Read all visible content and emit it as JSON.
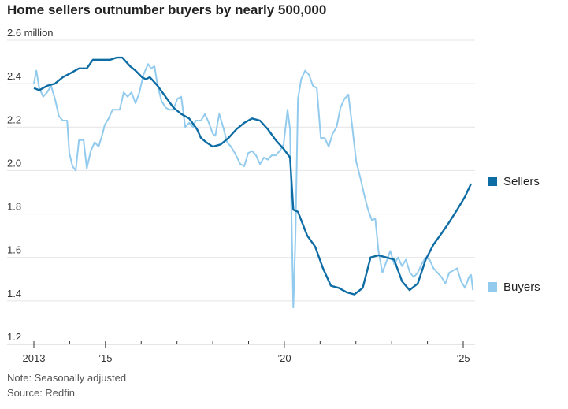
{
  "chart_data": {
    "type": "line",
    "title": "Home sellers outnumber buyers by nearly 500,000",
    "ylabel_unit": "million",
    "ylim": [
      1.2,
      2.6
    ],
    "yticks": [
      {
        "v": 2.6,
        "label": "2.6 million"
      },
      {
        "v": 2.4,
        "label": "2.4"
      },
      {
        "v": 2.2,
        "label": "2.2"
      },
      {
        "v": 2.0,
        "label": "2.0"
      },
      {
        "v": 1.8,
        "label": "1.8"
      },
      {
        "v": 1.6,
        "label": "1.6"
      },
      {
        "v": 1.4,
        "label": "1.4"
      },
      {
        "v": 1.2,
        "label": "1.2"
      }
    ],
    "xlim": [
      2013,
      2025.35
    ],
    "xticks": [
      {
        "v": 2013,
        "label": "2013"
      },
      {
        "v": 2014,
        "label": ""
      },
      {
        "v": 2015,
        "label": "’15"
      },
      {
        "v": 2016,
        "label": ""
      },
      {
        "v": 2017,
        "label": ""
      },
      {
        "v": 2018,
        "label": ""
      },
      {
        "v": 2019,
        "label": ""
      },
      {
        "v": 2020,
        "label": "’20"
      },
      {
        "v": 2021,
        "label": ""
      },
      {
        "v": 2022,
        "label": ""
      },
      {
        "v": 2023,
        "label": ""
      },
      {
        "v": 2024,
        "label": ""
      },
      {
        "v": 2025,
        "label": "’25"
      }
    ],
    "grid": true,
    "legend_placement": "right",
    "series": [
      {
        "name": "Sellers",
        "color": "#0e6ca4",
        "x": [
          2013.0,
          2013.15,
          2013.37,
          2013.59,
          2013.81,
          2014.04,
          2014.26,
          2014.48,
          2014.65,
          2014.81,
          2015.0,
          2015.14,
          2015.31,
          2015.47,
          2015.69,
          2015.84,
          2016.02,
          2016.13,
          2016.24,
          2016.46,
          2016.68,
          2016.9,
          2017.12,
          2017.34,
          2017.56,
          2017.67,
          2017.82,
          2018.0,
          2018.22,
          2018.44,
          2018.66,
          2018.88,
          2019.1,
          2019.32,
          2019.54,
          2019.76,
          2019.98,
          2020.16,
          2020.25,
          2020.38,
          2020.64,
          2020.86,
          2021.08,
          2021.3,
          2021.52,
          2021.74,
          2021.96,
          2022.19,
          2022.41,
          2022.63,
          2022.85,
          2023.07,
          2023.29,
          2023.5,
          2023.73,
          2023.95,
          2024.17,
          2024.39,
          2024.6,
          2024.83,
          2025.05,
          2025.22
        ],
        "values": [
          2.38,
          2.37,
          2.39,
          2.4,
          2.43,
          2.45,
          2.47,
          2.47,
          2.51,
          2.51,
          2.51,
          2.51,
          2.52,
          2.52,
          2.48,
          2.46,
          2.43,
          2.42,
          2.43,
          2.39,
          2.34,
          2.29,
          2.26,
          2.24,
          2.19,
          2.15,
          2.13,
          2.11,
          2.12,
          2.15,
          2.19,
          2.22,
          2.24,
          2.23,
          2.19,
          2.14,
          2.1,
          2.06,
          1.82,
          1.81,
          1.7,
          1.65,
          1.55,
          1.47,
          1.46,
          1.44,
          1.43,
          1.46,
          1.6,
          1.61,
          1.6,
          1.59,
          1.49,
          1.45,
          1.48,
          1.59,
          1.66,
          1.71,
          1.76,
          1.82,
          1.88,
          1.94
        ]
      },
      {
        "name": "Buyers",
        "color": "#92cbee",
        "x": [
          2013.0,
          2013.07,
          2013.15,
          2013.26,
          2013.37,
          2013.48,
          2013.59,
          2013.7,
          2013.81,
          2013.93,
          2013.99,
          2014.08,
          2014.17,
          2014.26,
          2014.39,
          2014.48,
          2014.59,
          2014.7,
          2014.81,
          2014.92,
          2014.98,
          2015.09,
          2015.2,
          2015.31,
          2015.4,
          2015.51,
          2015.62,
          2015.73,
          2015.84,
          2015.95,
          2016.06,
          2016.19,
          2016.28,
          2016.37,
          2016.46,
          2016.57,
          2016.68,
          2016.79,
          2016.9,
          2017.01,
          2017.12,
          2017.23,
          2017.34,
          2017.45,
          2017.52,
          2017.67,
          2017.78,
          2017.89,
          2018.0,
          2018.07,
          2018.18,
          2018.29,
          2018.4,
          2018.51,
          2018.62,
          2018.77,
          2018.88,
          2018.99,
          2019.1,
          2019.21,
          2019.32,
          2019.43,
          2019.54,
          2019.65,
          2019.76,
          2019.87,
          2019.98,
          2020.09,
          2020.16,
          2020.2,
          2020.25,
          2020.31,
          2020.38,
          2020.47,
          2020.58,
          2020.69,
          2020.8,
          2020.91,
          2021.02,
          2021.13,
          2021.24,
          2021.35,
          2021.46,
          2021.57,
          2021.68,
          2021.79,
          2021.9,
          2022.01,
          2022.12,
          2022.23,
          2022.34,
          2022.45,
          2022.54,
          2022.63,
          2022.74,
          2022.85,
          2022.96,
          2023.07,
          2023.18,
          2023.29,
          2023.4,
          2023.51,
          2023.62,
          2023.73,
          2023.84,
          2023.95,
          2024.06,
          2024.17,
          2024.28,
          2024.39,
          2024.5,
          2024.61,
          2024.72,
          2024.83,
          2024.94,
          2025.05,
          2025.16,
          2025.22,
          2025.27
        ],
        "values": [
          2.4,
          2.46,
          2.38,
          2.34,
          2.36,
          2.39,
          2.33,
          2.25,
          2.23,
          2.23,
          2.08,
          2.02,
          2.0,
          2.14,
          2.14,
          2.01,
          2.09,
          2.13,
          2.11,
          2.17,
          2.21,
          2.24,
          2.28,
          2.28,
          2.28,
          2.36,
          2.34,
          2.36,
          2.31,
          2.36,
          2.44,
          2.49,
          2.47,
          2.48,
          2.39,
          2.32,
          2.29,
          2.28,
          2.28,
          2.33,
          2.34,
          2.2,
          2.22,
          2.2,
          2.23,
          2.23,
          2.26,
          2.22,
          2.17,
          2.16,
          2.26,
          2.2,
          2.13,
          2.11,
          2.08,
          2.03,
          2.02,
          2.08,
          2.09,
          2.07,
          2.03,
          2.06,
          2.05,
          2.07,
          2.07,
          2.09,
          2.12,
          2.28,
          2.19,
          1.79,
          1.37,
          1.69,
          2.33,
          2.42,
          2.46,
          2.44,
          2.39,
          2.38,
          2.15,
          2.15,
          2.11,
          2.17,
          2.2,
          2.29,
          2.33,
          2.35,
          2.2,
          2.04,
          1.97,
          1.89,
          1.82,
          1.77,
          1.78,
          1.63,
          1.53,
          1.58,
          1.63,
          1.57,
          1.6,
          1.56,
          1.59,
          1.53,
          1.51,
          1.53,
          1.57,
          1.6,
          1.59,
          1.55,
          1.53,
          1.51,
          1.48,
          1.53,
          1.54,
          1.55,
          1.49,
          1.46,
          1.51,
          1.52,
          1.45
        ]
      }
    ],
    "notes": [
      "Note: Seasonally adjusted",
      "Source: Redfin"
    ]
  }
}
